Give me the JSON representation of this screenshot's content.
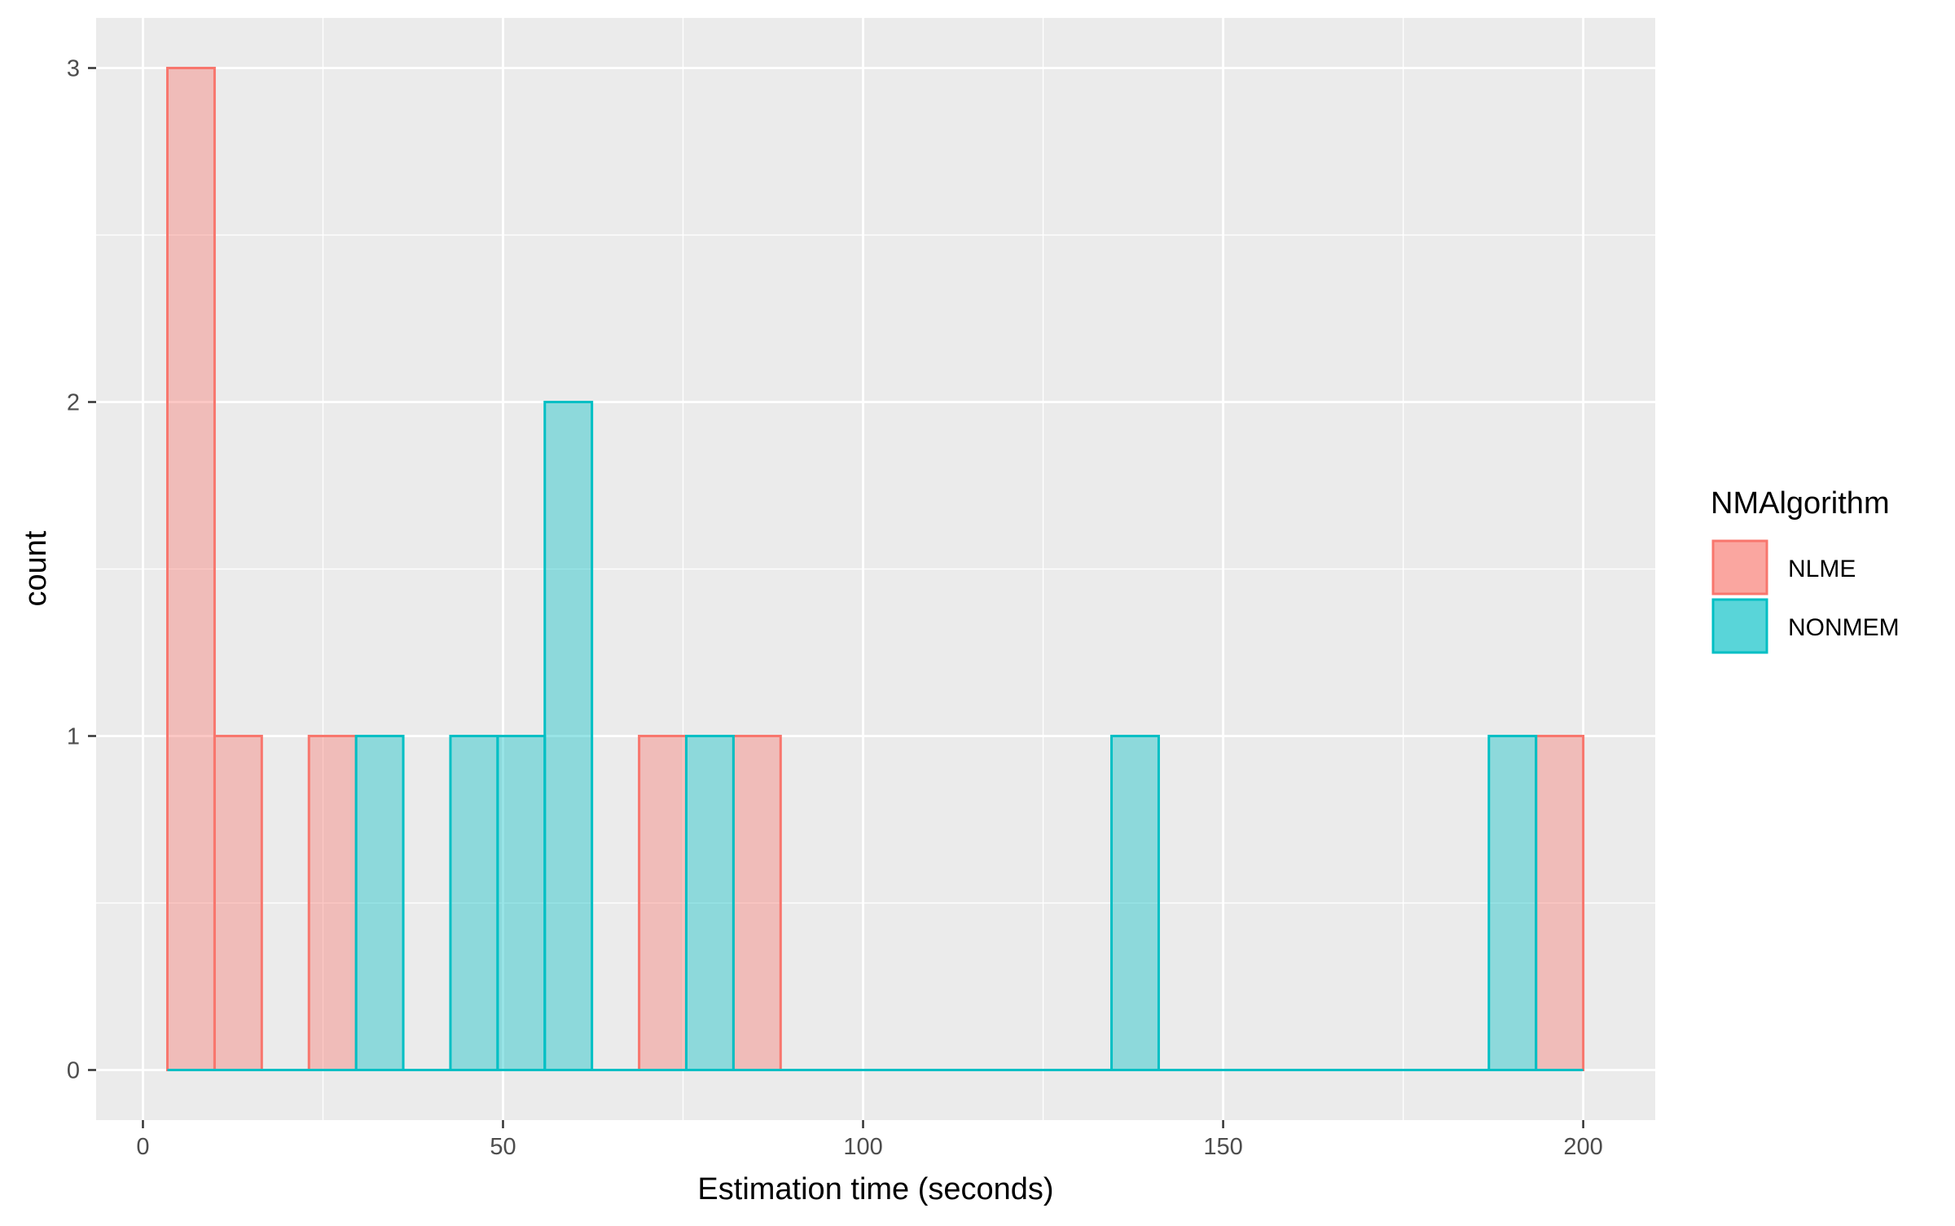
{
  "chart_data": {
    "type": "bar",
    "subtype": "histogram",
    "title": "",
    "xlabel": "Estimation time (seconds)",
    "ylabel": "count",
    "xlim": [
      -6.5,
      210
    ],
    "ylim": [
      -0.15,
      3.15
    ],
    "x_ticks": [
      0,
      50,
      100,
      150,
      200
    ],
    "x_tick_labels": [
      "0",
      "50",
      "100",
      "150",
      "200"
    ],
    "y_ticks": [
      0,
      1,
      2,
      3
    ],
    "y_tick_labels": [
      "0",
      "1",
      "2",
      "3"
    ],
    "grid": true,
    "legend": {
      "title": "NMAlgorithm",
      "position": "right",
      "entries": [
        "NLME",
        "NONMEM"
      ]
    },
    "bin_width": 6.55,
    "bins_start": 3.4,
    "bins_end": 200.0,
    "series": [
      {
        "name": "NLME",
        "stroke": "#F8766D",
        "fill": "#F8766D",
        "bins": [
          {
            "x0": 3.4,
            "x1": 9.95,
            "count": 3
          },
          {
            "x0": 9.95,
            "x1": 16.5,
            "count": 1
          },
          {
            "x0": 23.05,
            "x1": 29.6,
            "count": 1
          },
          {
            "x0": 68.9,
            "x1": 75.45,
            "count": 1
          },
          {
            "x0": 82.0,
            "x1": 88.55,
            "count": 1
          },
          {
            "x0": 193.45,
            "x1": 200.0,
            "count": 1
          }
        ]
      },
      {
        "name": "NONMEM",
        "stroke": "#00BFC4",
        "fill": "#00BFC4",
        "bins": [
          {
            "x0": 29.6,
            "x1": 36.15,
            "count": 1
          },
          {
            "x0": 42.7,
            "x1": 49.25,
            "count": 1
          },
          {
            "x0": 49.25,
            "x1": 55.8,
            "count": 1
          },
          {
            "x0": 55.8,
            "x1": 62.35,
            "count": 2
          },
          {
            "x0": 75.45,
            "x1": 82.0,
            "count": 1
          },
          {
            "x0": 134.5,
            "x1": 141.05,
            "count": 1
          },
          {
            "x0": 186.9,
            "x1": 193.45,
            "count": 1
          }
        ]
      }
    ]
  },
  "colors": {
    "panel_background": "#EBEBEB",
    "grid": "#FFFFFF",
    "tick_text": "#4D4D4D",
    "tick_mark": "#333333"
  }
}
